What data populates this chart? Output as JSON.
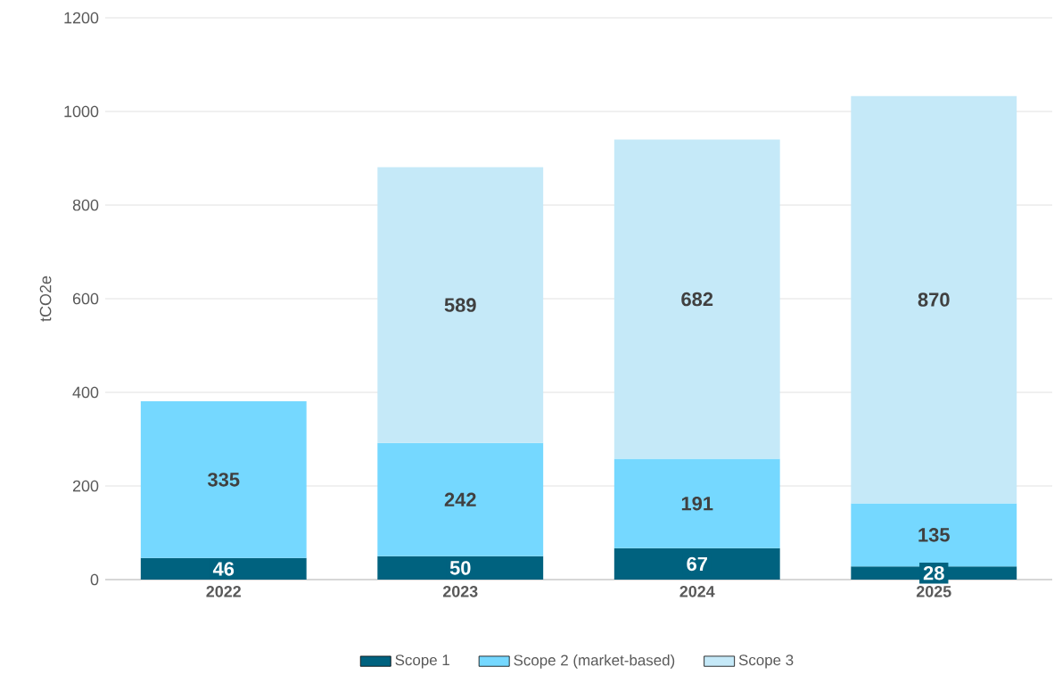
{
  "chart_data": {
    "type": "bar",
    "stacked": true,
    "ylabel": "tCO2e",
    "categories": [
      "2022",
      "2023",
      "2024",
      "2025"
    ],
    "series": [
      {
        "name": "Scope 1",
        "color": "#00627f",
        "values": [
          46,
          50,
          67,
          28
        ]
      },
      {
        "name": "Scope 2 (market-based)",
        "color": "#75d8ff",
        "values": [
          335,
          242,
          191,
          135
        ]
      },
      {
        "name": "Scope 3",
        "color": "#c5e9f8",
        "values": [
          null,
          589,
          682,
          870
        ]
      }
    ],
    "ylim": [
      0,
      1200
    ],
    "yticks": [
      0,
      200,
      400,
      600,
      800,
      1000,
      1200
    ],
    "grid": "y",
    "legend": "bottom",
    "data_labels": true
  }
}
